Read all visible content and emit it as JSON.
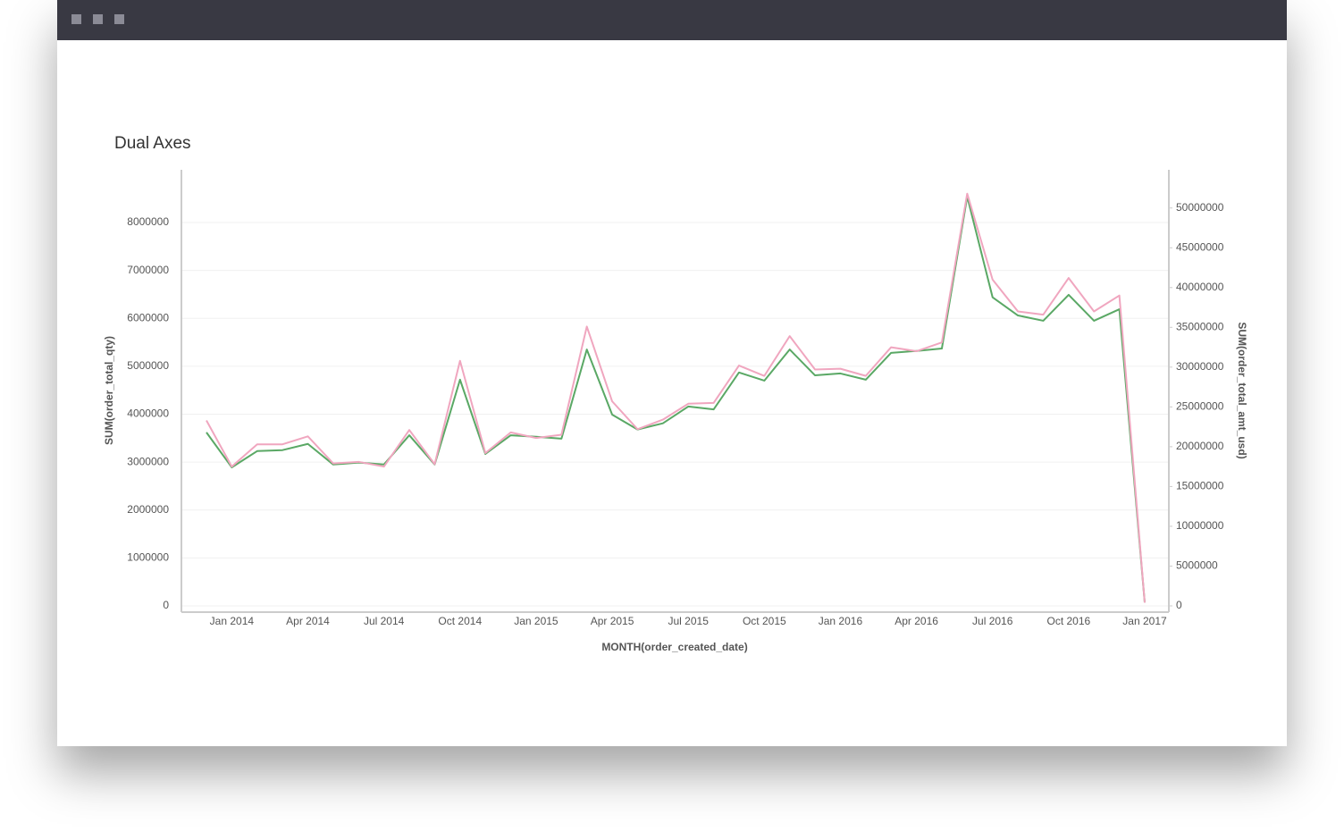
{
  "chart_data": {
    "type": "line",
    "title": "Dual Axes",
    "xlabel": "MONTH(order_created_date)",
    "ylabel": "SUM(order_total_qty)",
    "y2label": "SUM(order_total_amt_usd)",
    "categories": [
      null,
      "Jan 2014",
      null,
      null,
      "Apr 2014",
      null,
      null,
      "Jul 2014",
      null,
      null,
      "Oct 2014",
      null,
      null,
      "Jan 2015",
      null,
      null,
      "Apr 2015",
      null,
      null,
      "Jul 2015",
      null,
      null,
      "Oct 2015",
      null,
      null,
      "Jan 2016",
      null,
      null,
      "Apr 2016",
      null,
      null,
      "Jul 2016",
      null,
      null,
      "Oct 2016",
      null,
      null,
      "Jan 2017"
    ],
    "series": [
      {
        "color": "#5aa865",
        "axis": "y",
        "values": [
          3620000,
          2890000,
          3230000,
          3250000,
          3380000,
          2950000,
          2990000,
          2950000,
          3560000,
          2950000,
          4720000,
          3170000,
          3560000,
          3530000,
          3490000,
          5350000,
          3990000,
          3680000,
          3810000,
          4160000,
          4100000,
          4870000,
          4700000,
          5350000,
          4810000,
          4850000,
          4720000,
          5280000,
          5320000,
          5370000,
          8540000,
          6440000,
          6060000,
          5950000,
          6490000,
          5950000,
          6190000,
          70000
        ]
      },
      {
        "color": "#f0a6bf",
        "axis": "y2",
        "values": [
          23300000,
          17500000,
          20300000,
          20300000,
          21300000,
          17900000,
          18100000,
          17500000,
          22100000,
          17800000,
          30800000,
          19200000,
          21800000,
          21100000,
          21500000,
          35100000,
          25700000,
          22200000,
          23400000,
          25400000,
          25500000,
          30200000,
          28900000,
          33900000,
          29700000,
          29800000,
          28900000,
          32500000,
          32000000,
          33100000,
          51800000,
          41000000,
          37000000,
          36600000,
          41200000,
          37000000,
          39000000,
          400000
        ]
      }
    ],
    "ylim": [
      0,
      9100000
    ],
    "yticks": [
      0,
      1000000,
      2000000,
      3000000,
      4000000,
      5000000,
      6000000,
      7000000,
      8000000
    ],
    "y2lim": [
      0,
      54800000
    ],
    "y2ticks": [
      0,
      5000000,
      10000000,
      15000000,
      20000000,
      25000000,
      30000000,
      35000000,
      40000000,
      45000000,
      50000000
    ],
    "grid": true
  }
}
